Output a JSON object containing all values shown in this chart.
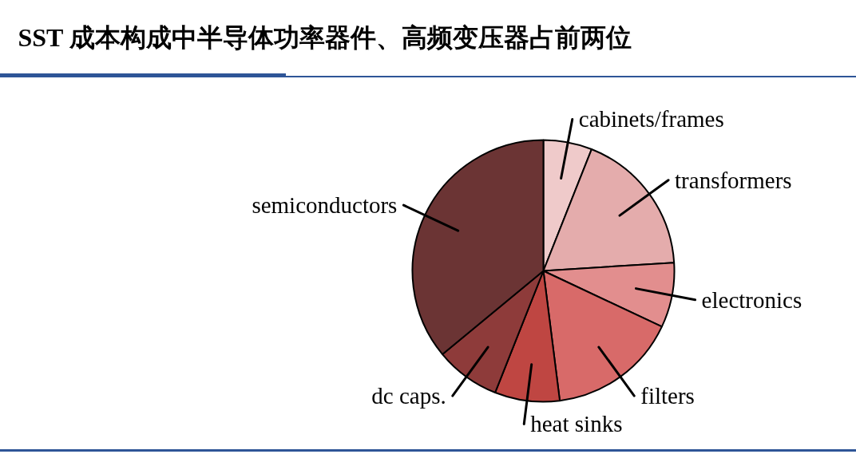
{
  "chart_data": {
    "type": "pie",
    "title": "SST 成本构成中半导体功率器件、高频变压器占前两位",
    "categories": [
      "cabinets/frames",
      "transformers",
      "electronics",
      "filters",
      "heat sinks",
      "dc caps.",
      "semiconductors"
    ],
    "values": [
      6,
      18,
      8,
      16,
      8,
      8,
      36
    ],
    "colors": [
      "#efcaca",
      "#e4acac",
      "#e28e8e",
      "#d86a69",
      "#bf4642",
      "#8e3b3a",
      "#6b3434"
    ]
  }
}
